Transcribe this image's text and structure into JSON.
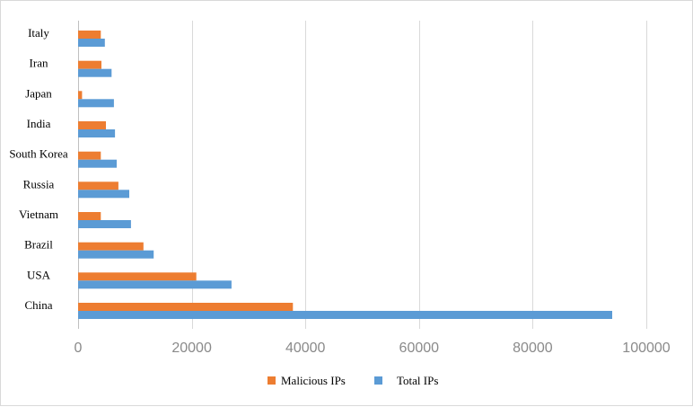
{
  "chart_data": {
    "type": "bar",
    "orientation": "horizontal",
    "categories": [
      "Italy",
      "Iran",
      "Japan",
      "India",
      "South Korea",
      "Russia",
      "Vietnam",
      "Brazil",
      "USA",
      "China"
    ],
    "series": [
      {
        "name": "Malicious IPs",
        "color": "#ed7d31",
        "values": [
          4000,
          4100,
          700,
          4900,
          4000,
          7100,
          4000,
          11500,
          20800,
          37800
        ]
      },
      {
        "name": "Total IPs",
        "color": "#5b9bd5",
        "values": [
          4700,
          5900,
          6300,
          6500,
          6800,
          9000,
          9300,
          13300,
          27000,
          94000
        ]
      }
    ],
    "xlim": [
      0,
      100000
    ],
    "xticks": [
      0,
      20000,
      40000,
      60000,
      80000,
      100000
    ],
    "xtick_labels": [
      "0",
      "20000",
      "40000",
      "60000",
      "80000",
      "100000"
    ],
    "grid": true,
    "legend_position": "bottom"
  }
}
